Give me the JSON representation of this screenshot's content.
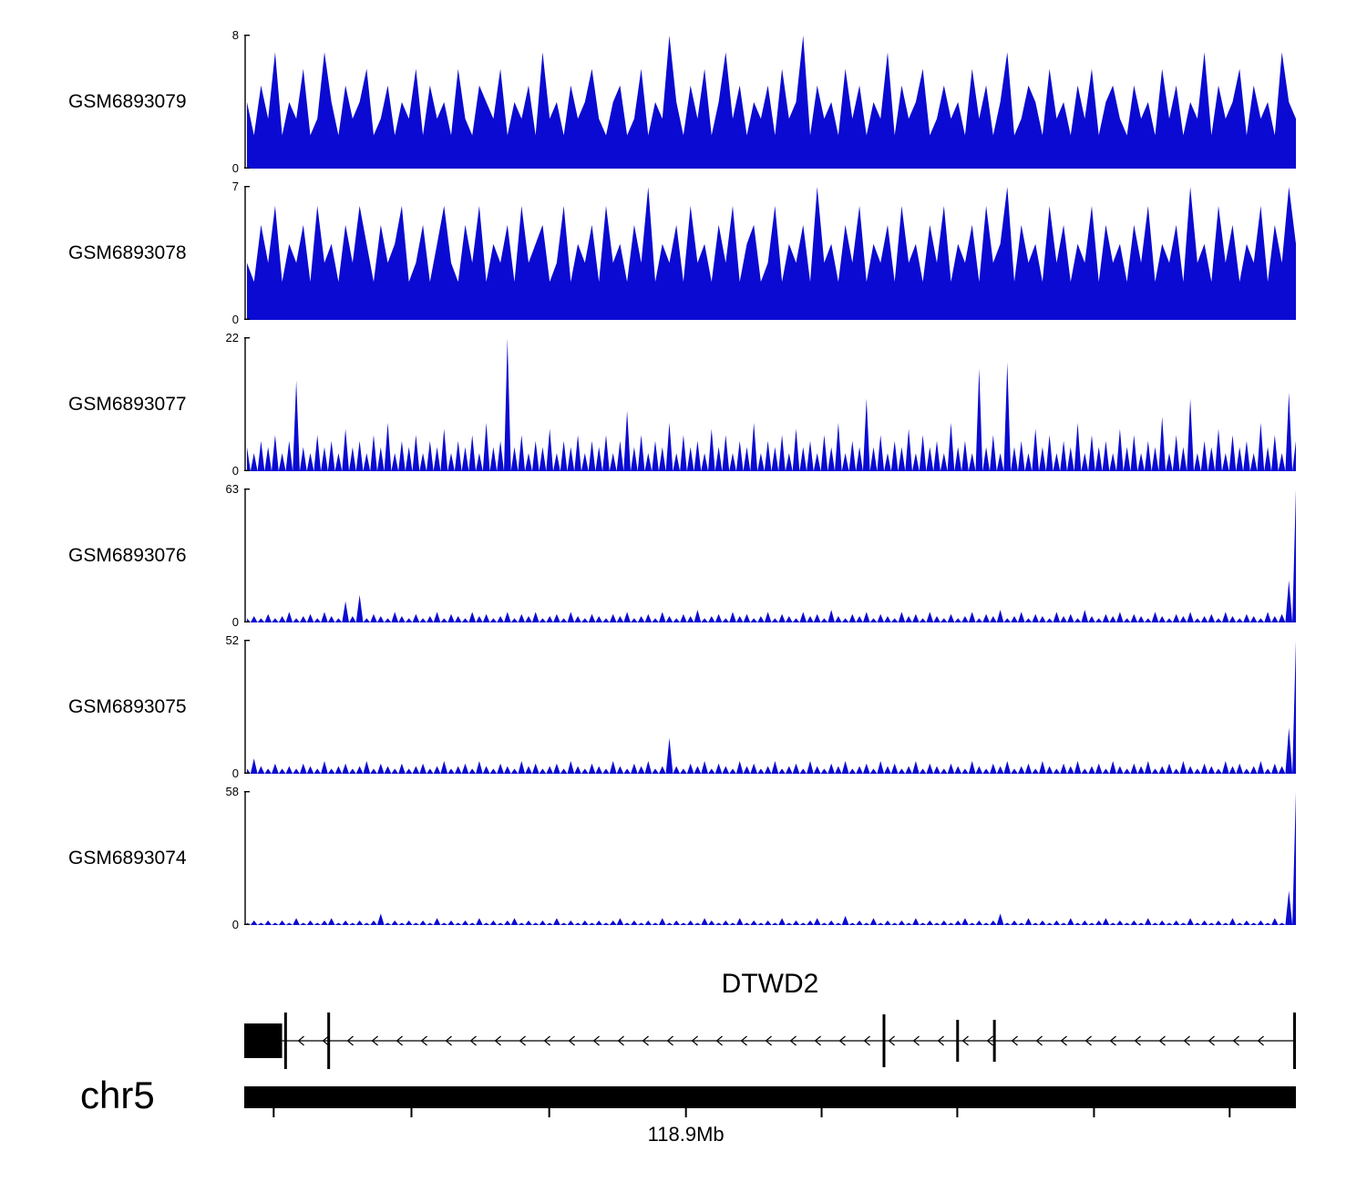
{
  "chart_data": {
    "type": "area",
    "description": "Genome browser read-coverage tracks over the DTWD2 locus on chr5",
    "colors": {
      "signal": "#0a0ad2",
      "ink": "#000000"
    },
    "tracks": [
      {
        "label": "GSM6893079",
        "ymax": 8,
        "ymin": 0,
        "style": "dense",
        "values": [
          4,
          2,
          5,
          3,
          7,
          2,
          4,
          3,
          6,
          2,
          3,
          7,
          4,
          2,
          5,
          3,
          4,
          6,
          2,
          3,
          5,
          2,
          4,
          3,
          6,
          2,
          5,
          3,
          4,
          2,
          6,
          3,
          2,
          5,
          4,
          3,
          6,
          2,
          4,
          3,
          5,
          2,
          7,
          3,
          4,
          2,
          5,
          3,
          4,
          6,
          3,
          2,
          4,
          5,
          2,
          3,
          6,
          2,
          4,
          3,
          8,
          4,
          2,
          5,
          3,
          6,
          2,
          4,
          7,
          3,
          5,
          2,
          4,
          3,
          5,
          2,
          6,
          3,
          4,
          8,
          2,
          5,
          3,
          4,
          2,
          6,
          3,
          5,
          2,
          4,
          3,
          7,
          2,
          5,
          3,
          4,
          6,
          2,
          3,
          5,
          3,
          4,
          2,
          6,
          3,
          5,
          2,
          4,
          7,
          2,
          3,
          5,
          4,
          2,
          6,
          3,
          4,
          2,
          5,
          3,
          6,
          2,
          4,
          5,
          3,
          2,
          5,
          3,
          4,
          2,
          6,
          3,
          5,
          2,
          4,
          3,
          7,
          2,
          5,
          3,
          4,
          6,
          2,
          5,
          3,
          4,
          2,
          7,
          4,
          3
        ]
      },
      {
        "label": "GSM6893078",
        "ymax": 7,
        "ymin": 0,
        "style": "dense",
        "values": [
          3,
          2,
          5,
          3,
          6,
          2,
          4,
          3,
          5,
          2,
          6,
          3,
          4,
          2,
          5,
          3,
          6,
          4,
          2,
          5,
          3,
          4,
          6,
          2,
          3,
          5,
          2,
          4,
          6,
          3,
          2,
          5,
          3,
          6,
          2,
          4,
          3,
          5,
          2,
          6,
          3,
          4,
          5,
          2,
          3,
          6,
          2,
          4,
          3,
          5,
          2,
          6,
          3,
          4,
          2,
          5,
          3,
          7,
          2,
          4,
          3,
          5,
          2,
          6,
          3,
          4,
          2,
          5,
          3,
          6,
          2,
          4,
          5,
          2,
          3,
          6,
          2,
          4,
          3,
          5,
          2,
          7,
          3,
          4,
          2,
          5,
          3,
          6,
          2,
          4,
          3,
          5,
          2,
          6,
          3,
          4,
          2,
          5,
          3,
          6,
          2,
          4,
          3,
          5,
          2,
          6,
          3,
          4,
          7,
          2,
          5,
          3,
          4,
          2,
          6,
          3,
          5,
          2,
          4,
          3,
          6,
          2,
          5,
          3,
          4,
          2,
          5,
          3,
          6,
          2,
          4,
          3,
          5,
          2,
          7,
          3,
          4,
          2,
          6,
          3,
          5,
          2,
          4,
          3,
          6,
          2,
          5,
          3,
          7,
          4
        ]
      },
      {
        "label": "GSM6893077",
        "ymax": 22,
        "ymin": 0,
        "style": "peaks",
        "values": [
          4,
          3,
          5,
          4,
          6,
          3,
          5,
          15,
          4,
          3,
          6,
          4,
          5,
          3,
          7,
          4,
          5,
          3,
          6,
          4,
          8,
          3,
          5,
          4,
          6,
          3,
          5,
          4,
          7,
          3,
          5,
          4,
          6,
          3,
          8,
          4,
          5,
          22,
          4,
          6,
          3,
          5,
          4,
          7,
          3,
          5,
          4,
          6,
          3,
          5,
          4,
          6,
          3,
          5,
          10,
          4,
          6,
          3,
          5,
          4,
          8,
          3,
          6,
          4,
          5,
          3,
          7,
          4,
          6,
          3,
          5,
          4,
          8,
          3,
          5,
          4,
          6,
          3,
          7,
          4,
          5,
          3,
          6,
          4,
          8,
          3,
          5,
          4,
          12,
          4,
          6,
          3,
          5,
          4,
          7,
          3,
          6,
          4,
          5,
          3,
          8,
          4,
          5,
          3,
          17,
          4,
          6,
          3,
          18,
          4,
          5,
          3,
          7,
          4,
          6,
          3,
          5,
          4,
          8,
          3,
          6,
          4,
          5,
          3,
          7,
          4,
          6,
          3,
          5,
          4,
          9,
          3,
          6,
          4,
          12,
          3,
          5,
          4,
          7,
          3,
          6,
          4,
          5,
          3,
          8,
          4,
          6,
          3,
          13,
          5
        ]
      },
      {
        "label": "GSM6893076",
        "ymax": 63,
        "ymin": 0,
        "style": "peaks",
        "values": [
          2,
          3,
          2,
          4,
          2,
          3,
          5,
          2,
          3,
          4,
          2,
          5,
          3,
          2,
          10,
          3,
          13,
          2,
          4,
          3,
          2,
          5,
          3,
          2,
          4,
          2,
          3,
          5,
          2,
          4,
          3,
          2,
          5,
          3,
          4,
          2,
          3,
          5,
          2,
          4,
          3,
          5,
          2,
          3,
          4,
          2,
          5,
          3,
          2,
          4,
          3,
          2,
          4,
          3,
          5,
          2,
          3,
          4,
          2,
          5,
          3,
          2,
          4,
          3,
          6,
          2,
          3,
          4,
          2,
          5,
          3,
          4,
          2,
          3,
          5,
          2,
          4,
          3,
          2,
          5,
          3,
          4,
          2,
          6,
          3,
          2,
          4,
          3,
          5,
          2,
          4,
          3,
          2,
          5,
          3,
          4,
          2,
          5,
          3,
          2,
          4,
          2,
          3,
          5,
          2,
          4,
          3,
          6,
          2,
          3,
          5,
          2,
          4,
          3,
          2,
          5,
          3,
          4,
          2,
          6,
          3,
          2,
          4,
          3,
          5,
          2,
          4,
          3,
          2,
          5,
          3,
          2,
          4,
          3,
          5,
          2,
          3,
          4,
          2,
          5,
          3,
          2,
          4,
          3,
          2,
          5,
          3,
          4,
          20,
          63
        ]
      },
      {
        "label": "GSM6893075",
        "ymax": 52,
        "ymin": 0,
        "style": "peaks",
        "values": [
          2,
          6,
          3,
          2,
          4,
          2,
          3,
          2,
          4,
          3,
          2,
          5,
          2,
          3,
          4,
          2,
          3,
          5,
          2,
          4,
          3,
          2,
          4,
          2,
          3,
          4,
          2,
          3,
          5,
          2,
          3,
          4,
          2,
          5,
          3,
          2,
          4,
          3,
          2,
          5,
          3,
          4,
          2,
          3,
          4,
          2,
          5,
          3,
          2,
          4,
          3,
          2,
          5,
          3,
          2,
          4,
          3,
          5,
          2,
          3,
          14,
          3,
          2,
          4,
          3,
          5,
          2,
          4,
          3,
          2,
          5,
          3,
          4,
          2,
          3,
          5,
          2,
          3,
          4,
          2,
          5,
          3,
          2,
          4,
          3,
          5,
          2,
          3,
          4,
          2,
          5,
          3,
          4,
          2,
          3,
          5,
          2,
          4,
          3,
          2,
          4,
          3,
          2,
          5,
          3,
          2,
          4,
          3,
          5,
          2,
          3,
          4,
          2,
          5,
          3,
          2,
          4,
          3,
          5,
          2,
          3,
          4,
          2,
          5,
          3,
          2,
          4,
          3,
          5,
          2,
          3,
          4,
          2,
          5,
          3,
          2,
          4,
          3,
          2,
          5,
          3,
          4,
          2,
          3,
          5,
          2,
          4,
          3,
          18,
          52
        ]
      },
      {
        "label": "GSM6893074",
        "ymax": 58,
        "ymin": 0,
        "style": "peaks",
        "values": [
          1,
          2,
          1,
          2,
          1,
          2,
          1,
          3,
          1,
          2,
          1,
          2,
          3,
          1,
          2,
          1,
          2,
          1,
          2,
          5,
          1,
          2,
          1,
          2,
          1,
          2,
          1,
          3,
          1,
          2,
          1,
          2,
          1,
          3,
          1,
          2,
          1,
          2,
          3,
          1,
          2,
          1,
          2,
          1,
          3,
          1,
          2,
          1,
          2,
          1,
          2,
          1,
          2,
          3,
          1,
          2,
          1,
          2,
          1,
          3,
          1,
          2,
          1,
          2,
          1,
          3,
          2,
          1,
          2,
          1,
          3,
          1,
          2,
          1,
          2,
          1,
          3,
          1,
          2,
          1,
          2,
          3,
          1,
          2,
          1,
          4,
          1,
          2,
          1,
          3,
          1,
          2,
          1,
          2,
          1,
          3,
          1,
          2,
          1,
          2,
          1,
          2,
          3,
          1,
          2,
          1,
          2,
          5,
          1,
          2,
          1,
          3,
          1,
          2,
          1,
          2,
          1,
          3,
          1,
          2,
          1,
          2,
          3,
          1,
          2,
          1,
          2,
          1,
          3,
          1,
          2,
          1,
          2,
          1,
          3,
          1,
          2,
          1,
          2,
          1,
          3,
          1,
          2,
          1,
          2,
          1,
          3,
          1,
          15,
          58
        ]
      }
    ],
    "gene": {
      "name": "DTWD2",
      "strand": "left",
      "thick_exon": {
        "start": 0.0,
        "end": 0.036
      },
      "line": {
        "start": 0.036,
        "end": 0.999
      },
      "exon_ticks": [
        {
          "pos": 0.038,
          "h": 62
        },
        {
          "pos": 0.079,
          "h": 62
        },
        {
          "pos": 0.607,
          "h": 58
        },
        {
          "pos": 0.677,
          "h": 46
        },
        {
          "pos": 0.712,
          "h": 46
        },
        {
          "pos": 0.999,
          "h": 62
        }
      ],
      "arrow_spacing": 27
    },
    "region": {
      "chromosome": "chr5",
      "position_label": "118.9Mb",
      "position_label_tick": 3,
      "axis_ticks": [
        0.028,
        0.159,
        0.29,
        0.42,
        0.549,
        0.678,
        0.808,
        0.937
      ]
    }
  }
}
